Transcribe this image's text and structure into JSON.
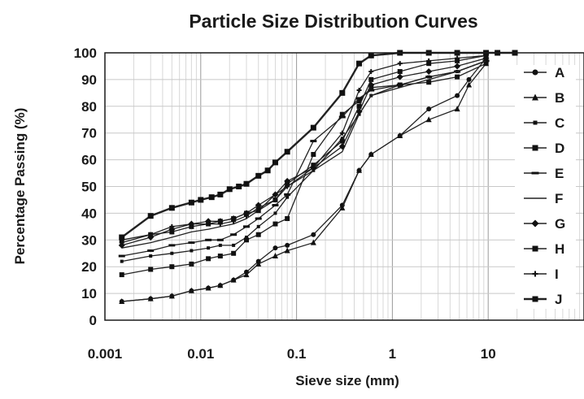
{
  "chart_data": {
    "type": "line",
    "title": "Particle Size Distribution Curves",
    "xlabel": "Sieve size (mm)",
    "ylabel": "Percentage Passing (%)",
    "xscale": "log",
    "xlim": [
      0.001,
      100
    ],
    "ylim": [
      0,
      100
    ],
    "xticks": [
      0.001,
      0.01,
      0.1,
      1,
      10
    ],
    "xtick_labels": [
      "0.001",
      "0.01",
      "0.1",
      "1",
      "10"
    ],
    "yticks": [
      0,
      10,
      20,
      30,
      40,
      50,
      60,
      70,
      80,
      90,
      100
    ],
    "ytick_labels": [
      "0",
      "10",
      "20",
      "30",
      "40",
      "50",
      "60",
      "70",
      "80",
      "90",
      "100"
    ],
    "grid": true,
    "legend_position": "right",
    "series": [
      {
        "name": "A",
        "marker": "circle",
        "x": [
          0.0015,
          0.003,
          0.005,
          0.008,
          0.012,
          0.016,
          0.022,
          0.03,
          0.04,
          0.06,
          0.08,
          0.15,
          0.3,
          0.45,
          0.6,
          1.2,
          2.4,
          4.75,
          6.3,
          9.5
        ],
        "y": [
          7,
          8,
          9,
          11,
          12,
          13,
          15,
          18,
          22,
          27,
          28,
          32,
          43,
          56,
          62,
          69,
          79,
          84,
          90,
          98
        ]
      },
      {
        "name": "B",
        "marker": "triangle",
        "x": [
          0.0015,
          0.003,
          0.005,
          0.008,
          0.012,
          0.016,
          0.022,
          0.03,
          0.04,
          0.06,
          0.08,
          0.15,
          0.3,
          0.45,
          0.6,
          1.2,
          2.4,
          4.75,
          6.3,
          9.5
        ],
        "y": [
          7,
          8,
          9,
          11,
          12,
          13,
          15,
          17,
          21,
          24,
          26,
          29,
          42,
          56,
          62,
          69,
          75,
          79,
          88,
          96
        ]
      },
      {
        "name": "C",
        "marker": "square-small",
        "x": [
          0.0015,
          0.003,
          0.005,
          0.008,
          0.012,
          0.016,
          0.022,
          0.03,
          0.04,
          0.06,
          0.08,
          0.15,
          0.3,
          0.45,
          0.6,
          1.2,
          2.4,
          4.75,
          9.5
        ],
        "y": [
          22,
          24,
          25,
          26,
          27,
          28,
          28,
          31,
          35,
          40,
          46,
          56,
          68,
          77,
          84,
          88,
          91,
          93,
          97
        ]
      },
      {
        "name": "D",
        "marker": "square",
        "x": [
          0.0015,
          0.003,
          0.005,
          0.008,
          0.012,
          0.016,
          0.022,
          0.03,
          0.04,
          0.06,
          0.08,
          0.15,
          0.3,
          0.45,
          0.6,
          1.2,
          2.4,
          4.75,
          9.5
        ],
        "y": [
          17,
          19,
          20,
          21,
          23,
          24,
          25,
          30,
          32,
          36,
          38,
          62,
          77,
          82,
          87,
          88,
          89,
          91,
          96
        ]
      },
      {
        "name": "E",
        "marker": "dash",
        "x": [
          0.0015,
          0.003,
          0.005,
          0.008,
          0.012,
          0.016,
          0.022,
          0.03,
          0.04,
          0.06,
          0.08,
          0.15,
          0.3,
          0.45,
          0.6,
          1.2,
          2.4,
          4.75,
          9.5
        ],
        "y": [
          24,
          26,
          28,
          29,
          30,
          30,
          32,
          35,
          38,
          43,
          47,
          67,
          76,
          83,
          86,
          88,
          91,
          93,
          97
        ]
      },
      {
        "name": "F",
        "marker": "none",
        "x": [
          0.0015,
          0.003,
          0.005,
          0.008,
          0.012,
          0.016,
          0.022,
          0.03,
          0.04,
          0.06,
          0.08,
          0.15,
          0.3,
          0.45,
          0.6,
          1.2,
          2.4,
          4.75,
          9.5
        ],
        "y": [
          27,
          29,
          31,
          33,
          34,
          35,
          36,
          38,
          41,
          47,
          50,
          56,
          63,
          77,
          84,
          87,
          90,
          93,
          97
        ]
      },
      {
        "name": "G",
        "marker": "diamond",
        "x": [
          0.0015,
          0.003,
          0.005,
          0.008,
          0.012,
          0.016,
          0.022,
          0.03,
          0.04,
          0.06,
          0.08,
          0.15,
          0.3,
          0.45,
          0.6,
          1.2,
          2.4,
          4.75,
          9.5
        ],
        "y": [
          28,
          31,
          34,
          36,
          37,
          37,
          38,
          40,
          43,
          47,
          52,
          57,
          65,
          78,
          88,
          91,
          93,
          95,
          98
        ]
      },
      {
        "name": "H",
        "marker": "square",
        "x": [
          0.0015,
          0.003,
          0.005,
          0.008,
          0.012,
          0.016,
          0.022,
          0.03,
          0.04,
          0.06,
          0.08,
          0.15,
          0.3,
          0.45,
          0.6,
          1.2,
          2.4,
          4.75,
          9.5
        ],
        "y": [
          30,
          32,
          33,
          35,
          36,
          37,
          38,
          40,
          41,
          45,
          51,
          58,
          67,
          80,
          90,
          93,
          96,
          97,
          99
        ]
      },
      {
        "name": "I",
        "marker": "plus",
        "x": [
          0.0015,
          0.003,
          0.005,
          0.008,
          0.012,
          0.016,
          0.022,
          0.03,
          0.04,
          0.06,
          0.08,
          0.15,
          0.3,
          0.45,
          0.6,
          1.2,
          2.4,
          4.75,
          9.5
        ],
        "y": [
          29,
          32,
          35,
          36,
          36,
          36,
          37,
          39,
          42,
          45,
          50,
          57,
          70,
          86,
          93,
          96,
          97,
          98,
          99
        ]
      },
      {
        "name": "J",
        "marker": "square",
        "x": [
          0.0015,
          0.003,
          0.005,
          0.008,
          0.01,
          0.013,
          0.016,
          0.02,
          0.025,
          0.03,
          0.04,
          0.05,
          0.06,
          0.08,
          0.15,
          0.3,
          0.45,
          0.6,
          1.2,
          2.4,
          4.75,
          9.5,
          12.5,
          19
        ],
        "y": [
          31,
          39,
          42,
          44,
          45,
          46,
          47,
          49,
          50,
          51,
          54,
          56,
          59,
          63,
          72,
          85,
          96,
          99,
          100,
          100,
          100,
          100,
          100,
          100
        ]
      }
    ]
  }
}
